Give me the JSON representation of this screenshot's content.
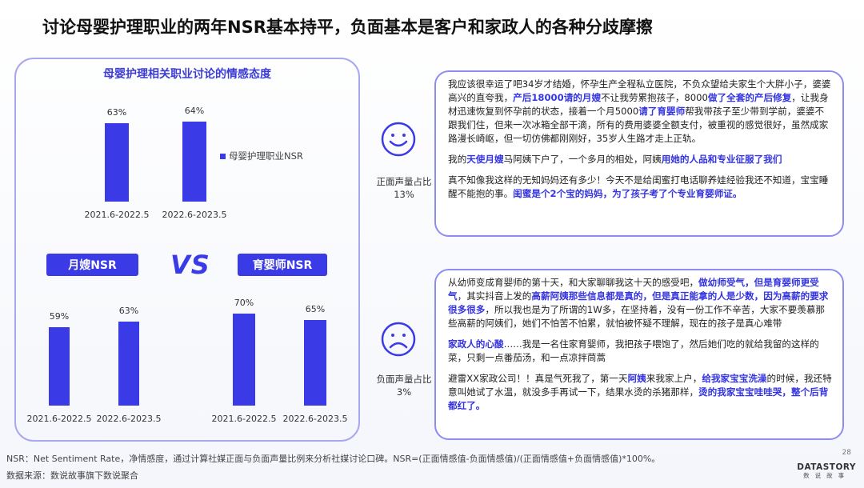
{
  "title": "讨论母婴护理职业的两年NSR基本持平，负面基本是客户和家政人的各种分歧摩擦",
  "chart_data": [
    {
      "type": "bar",
      "title": "母婴护理相关职业讨论的情感态度",
      "categories": [
        "2021.6-2022.5",
        "2022.6-2023.5"
      ],
      "series": [
        {
          "name": "母婴护理职业NSR",
          "values": [
            63,
            64
          ]
        }
      ],
      "value_labels": [
        "63%",
        "64%"
      ],
      "ylim": [
        0,
        100
      ]
    },
    {
      "type": "bar",
      "title": "月嫂NSR",
      "categories": [
        "2021.6-2022.5",
        "2022.6-2023.5"
      ],
      "values": [
        59,
        63
      ],
      "value_labels": [
        "59%",
        "63%"
      ],
      "ylim": [
        0,
        100
      ]
    },
    {
      "type": "bar",
      "title": "育婴师NSR",
      "categories": [
        "2021.6-2022.5",
        "2022.6-2023.5"
      ],
      "values": [
        70,
        65
      ],
      "value_labels": [
        "70%",
        "65%"
      ],
      "ylim": [
        0,
        100
      ]
    }
  ],
  "vs_label": "VS",
  "positive": {
    "caption_line1": "正面声量占比",
    "caption_line2": "13%",
    "quotes": [
      [
        {
          "t": "我应该很幸运了吧34岁才结婚，怀孕生产全程私立医院，不负众望给夫家生个大胖小子，婆婆高兴的直夸我，",
          "h": false
        },
        {
          "t": "产后18000请的月嫂",
          "h": true
        },
        {
          "t": "不让我劳累抱孩子，8000",
          "h": false
        },
        {
          "t": "做了全套的产后修复",
          "h": true
        },
        {
          "t": "，让我身材迅速恢复到怀孕前的状态，接着一个月5000",
          "h": false
        },
        {
          "t": "请了育婴师",
          "h": true
        },
        {
          "t": "帮我带孩子至少带到学前，婆婆不跟我们住，但来一次冰箱全部干滴，所有的费用婆婆全额支付，被重视的感觉很好，虽然成家路漫长崎岖，但一切仿佛都刚刚好，35岁人生路才走上正轨。",
          "h": false
        }
      ],
      [
        {
          "t": "我的",
          "h": false
        },
        {
          "t": "天使月嫂",
          "h": true
        },
        {
          "t": "马阿姨下户了，一个多月的相处，阿姨",
          "h": false
        },
        {
          "t": "用她的人品和专业征服了我们",
          "h": true
        }
      ],
      [
        {
          "t": "真不知像我这样的无知妈妈还有多少！今天不是给闺蜜打电话聊养娃经验我还不知道，宝宝睡醒不能抱的事。",
          "h": false
        },
        {
          "t": "闺蜜是个2个宝的妈妈，为了孩子考了个专业育婴师证。",
          "h": true
        }
      ]
    ]
  },
  "negative": {
    "caption_line1": "负面声量占比",
    "caption_line2": "3%",
    "quotes": [
      [
        {
          "t": "从幼师变成育婴师的第十天，和大家聊聊我这十天的感受吧，",
          "h": false
        },
        {
          "t": "做幼师受气，但是育婴师更受气",
          "h": true
        },
        {
          "t": "，其实抖音上发的",
          "h": false
        },
        {
          "t": "高薪阿姨那些信息都是真的，但是真正能拿的人是少数，因为高薪的要求很多很多",
          "h": true
        },
        {
          "t": "，所以我也是为了所谓的1W多，在坚持着，没有一份工作不辛苦，大家不要羡慕那些高薪的阿姨们，她们不怕苦不怕累，就怕被怀疑不理解，现在的孩子是真心难带",
          "h": false
        }
      ],
      [
        {
          "t": "家政人的心酸",
          "h": true
        },
        {
          "t": "……我是一名住家育婴师，我把孩子喂饱了，然后她们吃的就给我留的这样的菜，只剩一点番茄汤，和一点凉拌茼蒿",
          "h": false
        }
      ],
      [
        {
          "t": "避雷XX家政公司！！真是气死我了，第一天",
          "h": false
        },
        {
          "t": "阿姨",
          "h": true
        },
        {
          "t": "来我家上户，",
          "h": false
        },
        {
          "t": "给我家宝宝洗澡",
          "h": true
        },
        {
          "t": "的时候，我还特意叫她试了水温，就没多手再试一下，结果水烫的杀猪那样，",
          "h": false
        },
        {
          "t": "烫的我家宝宝哇哇哭，整个后背都红了。",
          "h": true
        }
      ]
    ]
  },
  "footnote_definition": "NSR：Net Sentiment Rate，净情感度，通过计算社媒正面与负面声量比例来分析社媒讨论口碑。NSR=(正面情感值-负面情感值)/(正面情感值+负面情感值)*100%。",
  "footnote_source": "数据来源：数说故事旗下数说聚合",
  "page_number": "28",
  "logo_text": "DATASTORY",
  "logo_sub": "数说故事",
  "colors": {
    "accent": "#3a3ae6",
    "panel_border": "#a9a8ef",
    "highlight": "#3535e0"
  }
}
